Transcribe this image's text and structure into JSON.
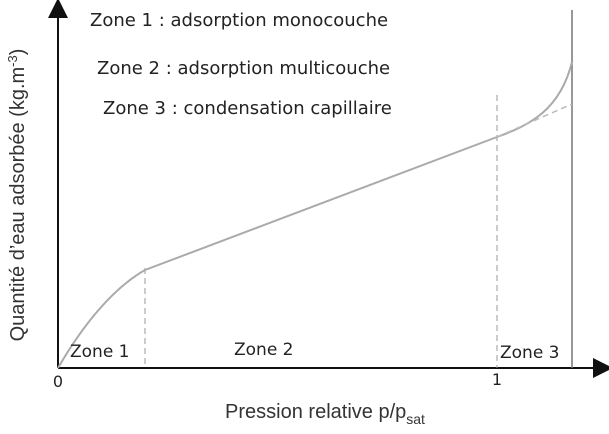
{
  "legend": [
    "Zone 1 : adsorption monocouche",
    "Zone 2 : adsorption multicouche",
    "Zone 3 : condensation capillaire"
  ],
  "zones": [
    "Zone 1",
    "Zone 2",
    "Zone 3"
  ],
  "x_ticks": [
    "0",
    "1"
  ],
  "y_axis_label": {
    "main": "Quantité d’eau adsorbée (kg.m",
    "superscript": "-3",
    "close": ")"
  },
  "x_axis_label": {
    "main": "Pression relative p/p",
    "subscript": "sat"
  }
}
